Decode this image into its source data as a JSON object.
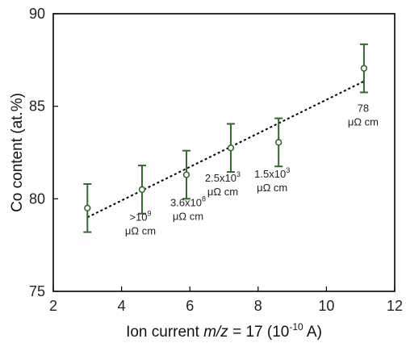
{
  "chart_data": {
    "type": "scatter",
    "xlabel_parts": {
      "prefix": "Ion current ",
      "italic": "m/z",
      "middle": " = 17 (10",
      "superscript": "-10",
      "suffix": " A)"
    },
    "ylabel": "Co content (at.%)",
    "xlim": [
      2,
      12
    ],
    "ylim": [
      75,
      90
    ],
    "xticks": [
      2,
      4,
      6,
      8,
      10,
      12
    ],
    "yticks": [
      75,
      80,
      85,
      90
    ],
    "xtick_labels": [
      "2",
      "4",
      "6",
      "8",
      "10",
      "12"
    ],
    "ytick_labels": [
      "75",
      "80",
      "85",
      "90"
    ],
    "colors": {
      "marker": "#2f6b2a",
      "errorbar": "#2f6b2a",
      "fit": "#000000",
      "axis": "#000000",
      "annotation": "#222222"
    },
    "series": [
      {
        "x": [
          3.0,
          4.6,
          5.9,
          7.2,
          8.6,
          11.1
        ],
        "y": [
          79.5,
          80.5,
          81.3,
          82.75,
          83.05,
          87.05
        ],
        "yerr": [
          1.3,
          1.3,
          1.3,
          1.3,
          1.3,
          1.3
        ]
      }
    ],
    "fit_line": {
      "x": [
        3.0,
        11.1
      ],
      "y": [
        79.0,
        86.35
      ]
    },
    "annotations": [
      {
        "point_index": 1,
        "lines": [
          {
            "base": ">10",
            "sup": "9"
          },
          {
            "text": "μΩ cm"
          }
        ]
      },
      {
        "point_index": 2,
        "lines": [
          {
            "base": "3.6x10",
            "sup": "8"
          },
          {
            "text": "μΩ cm"
          }
        ]
      },
      {
        "point_index": 3,
        "lines": [
          {
            "base": "2.5x10",
            "sup": "3"
          },
          {
            "text": "μΩ cm"
          }
        ]
      },
      {
        "point_index": 4,
        "lines": [
          {
            "base": "1.5x10",
            "sup": "3"
          },
          {
            "text": "μΩ cm"
          }
        ]
      },
      {
        "point_index": 5,
        "lines": [
          {
            "text": "78"
          },
          {
            "text": "μΩ cm"
          }
        ]
      }
    ]
  }
}
